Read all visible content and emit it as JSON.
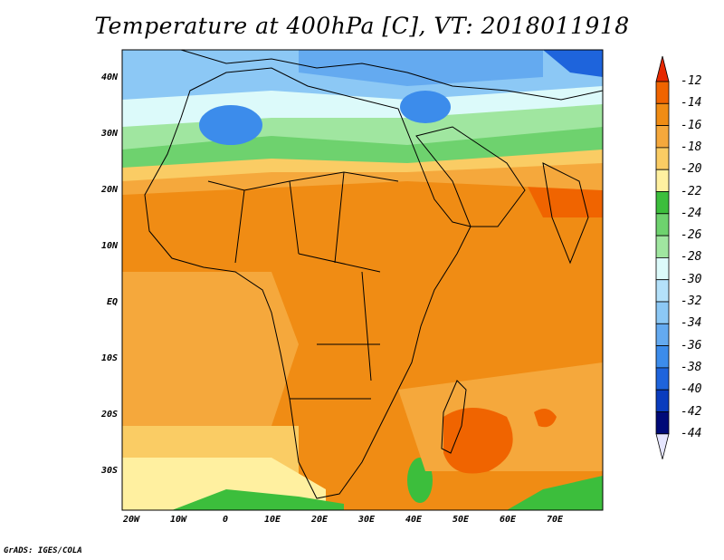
{
  "title": "Temperature at 400hPa [C], VT: 2018011918",
  "credit": "GrADS: IGES/COLA",
  "map": {
    "lat_labels": [
      "40N",
      "30N",
      "20N",
      "10N",
      "EQ",
      "10S",
      "20S",
      "30S"
    ],
    "lon_labels": [
      "20W",
      "10W",
      "0",
      "10E",
      "20E",
      "30E",
      "40E",
      "50E",
      "60E",
      "70E"
    ]
  },
  "colorbar": {
    "labels": [
      "-12",
      "-14",
      "-16",
      "-18",
      "-20",
      "-22",
      "-24",
      "-26",
      "-28",
      "-30",
      "-32",
      "-34",
      "-36",
      "-38",
      "-40",
      "-42",
      "-44"
    ],
    "colors": [
      "#f03c00",
      "#f06400",
      "#f08c14",
      "#f5a83c",
      "#facc64",
      "#fff0a0",
      "#3cbe3c",
      "#6ed26e",
      "#a0e6a0",
      "#dcfafa",
      "#b4e1fa",
      "#8cc8f5",
      "#64aaf0",
      "#3c8ceb",
      "#1e64dc",
      "#0a3cbe",
      "#000a78"
    ],
    "top_color": "#e62800",
    "bottom_color": "#e6e6ff"
  }
}
